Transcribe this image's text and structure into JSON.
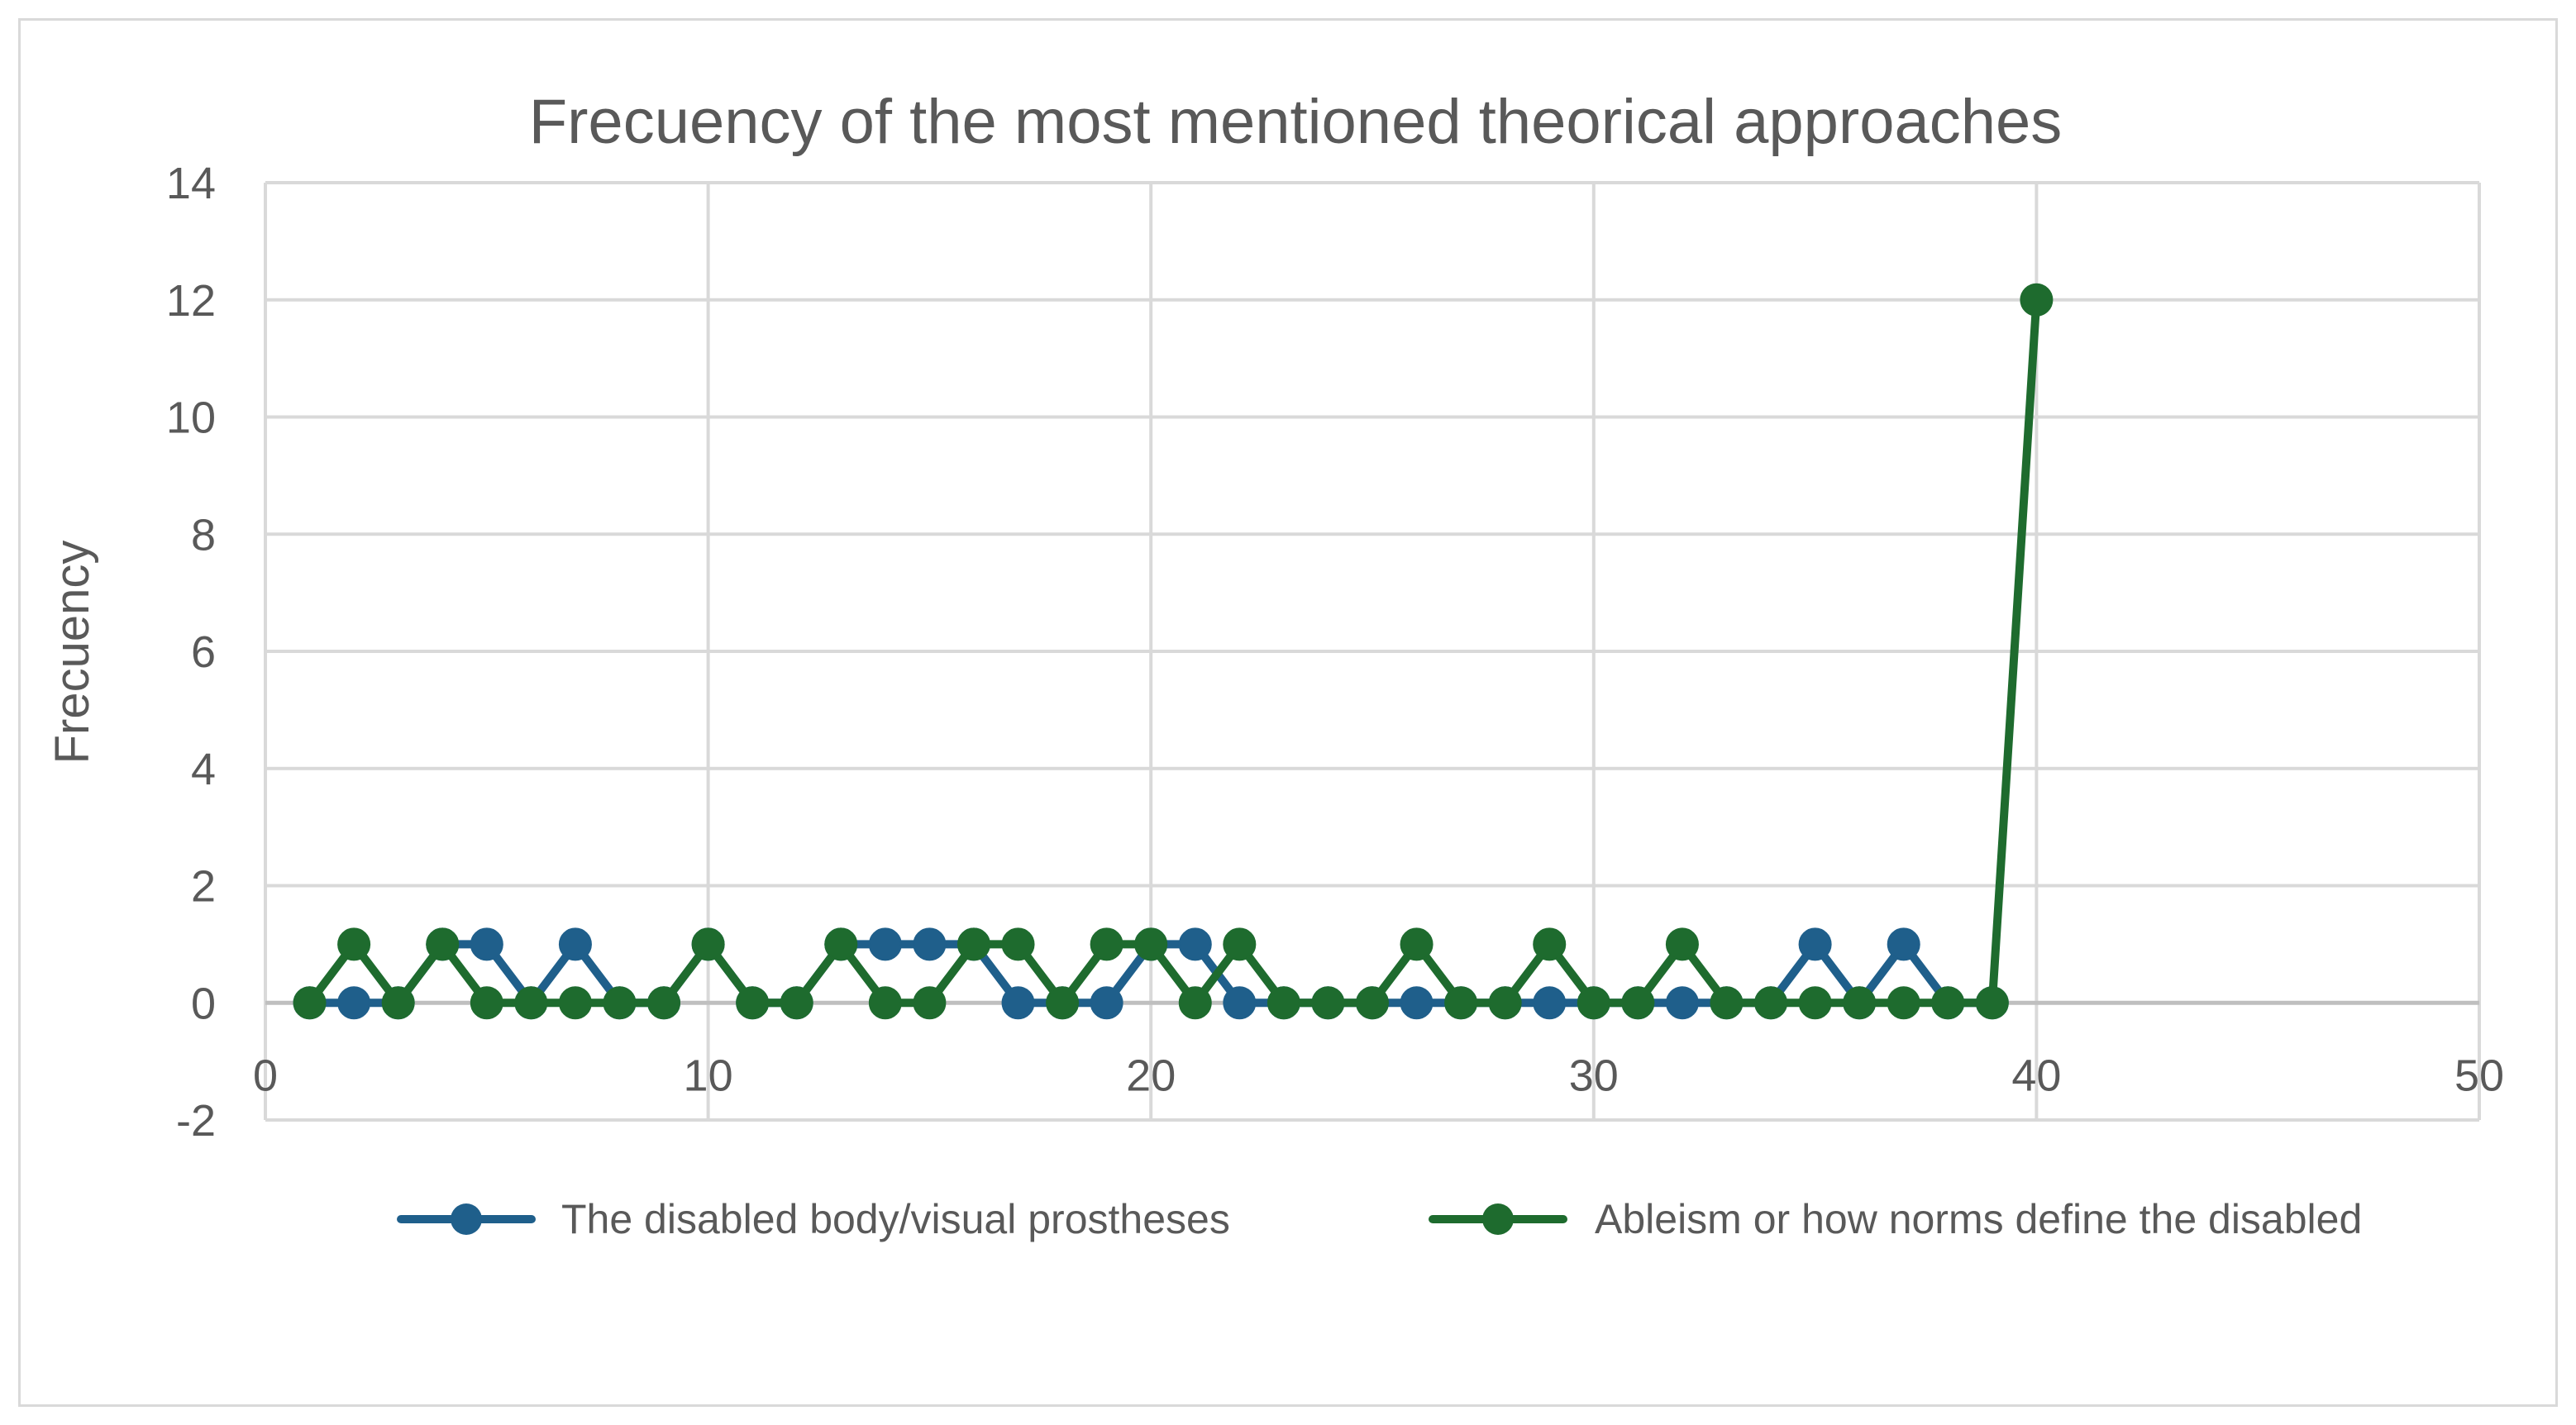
{
  "chart_data": {
    "type": "line",
    "title": "Frecuency of the most mentioned theorical approaches",
    "xlabel": "",
    "ylabel": "Frecuency",
    "xlim": [
      0,
      50
    ],
    "ylim": [
      -2,
      14
    ],
    "xticks": [
      0,
      10,
      20,
      30,
      40,
      50
    ],
    "yticks": [
      -2,
      0,
      2,
      4,
      6,
      8,
      10,
      12,
      14
    ],
    "grid": true,
    "legend_position": "bottom",
    "x": [
      1,
      2,
      3,
      4,
      5,
      6,
      7,
      8,
      9,
      10,
      11,
      12,
      13,
      14,
      15,
      16,
      17,
      18,
      19,
      20,
      21,
      22,
      23,
      24,
      25,
      26,
      27,
      28,
      29,
      30,
      31,
      32,
      33,
      34,
      35,
      36,
      37,
      38,
      39,
      40
    ],
    "series": [
      {
        "name": "The disabled body/visual prostheses",
        "color": "#1f5f8b",
        "values": [
          0,
          0,
          0,
          1,
          1,
          0,
          1,
          0,
          0,
          1,
          0,
          0,
          1,
          1,
          1,
          1,
          0,
          0,
          0,
          1,
          1,
          0,
          0,
          0,
          0,
          0,
          0,
          0,
          0,
          0,
          0,
          0,
          0,
          0,
          1,
          0,
          1,
          0,
          0,
          null
        ]
      },
      {
        "name": "Ableism or how norms define the disabled",
        "color": "#1e6b2e",
        "values": [
          0,
          1,
          0,
          1,
          0,
          0,
          0,
          0,
          0,
          1,
          0,
          0,
          1,
          0,
          0,
          1,
          1,
          0,
          1,
          1,
          0,
          1,
          0,
          0,
          0,
          1,
          0,
          0,
          1,
          0,
          0,
          1,
          0,
          0,
          0,
          0,
          0,
          0,
          0,
          12
        ]
      }
    ]
  }
}
